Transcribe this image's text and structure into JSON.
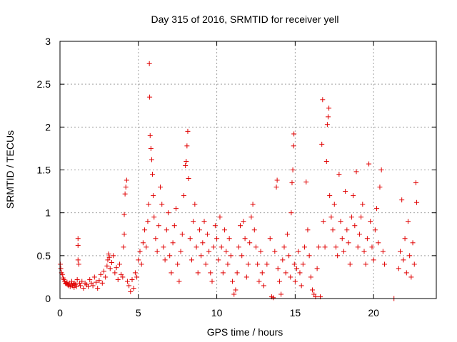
{
  "chart_data": {
    "type": "scatter",
    "title": "Day 315 of 2016, SRMTID for receiver yell",
    "xlabel": "GPS time / hours",
    "ylabel": "SRMTID / TECUs",
    "xlim": [
      0,
      24
    ],
    "ylim": [
      0,
      3
    ],
    "x_ticks": [
      0,
      5,
      10,
      15,
      20
    ],
    "x_tick_labels": [
      "0",
      "5",
      "10",
      "15",
      "20"
    ],
    "y_ticks": [
      0,
      0.5,
      1,
      1.5,
      2,
      2.5,
      3
    ],
    "y_tick_labels": [
      "0",
      "0.5",
      "1",
      "1.5",
      "2",
      "2.5",
      "3"
    ],
    "grid": true,
    "marker": "plus",
    "color": "#e00000",
    "series": [
      {
        "name": "SRMTID",
        "points": [
          [
            0.02,
            0.4
          ],
          [
            0.05,
            0.35
          ],
          [
            0.1,
            0.3
          ],
          [
            0.15,
            0.28
          ],
          [
            0.2,
            0.24
          ],
          [
            0.25,
            0.22
          ],
          [
            0.3,
            0.2
          ],
          [
            0.35,
            0.18
          ],
          [
            0.4,
            0.17
          ],
          [
            0.45,
            0.19
          ],
          [
            0.5,
            0.16
          ],
          [
            0.55,
            0.15
          ],
          [
            0.6,
            0.18
          ],
          [
            0.65,
            0.14
          ],
          [
            0.7,
            0.16
          ],
          [
            0.75,
            0.2
          ],
          [
            0.8,
            0.15
          ],
          [
            0.85,
            0.17
          ],
          [
            0.9,
            0.13
          ],
          [
            0.95,
            0.18
          ],
          [
            1.0,
            0.16
          ],
          [
            1.05,
            0.14
          ],
          [
            1.1,
            0.22
          ],
          [
            1.15,
            0.45
          ],
          [
            1.15,
            0.62
          ],
          [
            1.15,
            0.7
          ],
          [
            1.2,
            0.4
          ],
          [
            1.25,
            0.18
          ],
          [
            1.3,
            0.15
          ],
          [
            1.4,
            0.2
          ],
          [
            1.5,
            0.12
          ],
          [
            1.6,
            0.18
          ],
          [
            1.7,
            0.16
          ],
          [
            1.8,
            0.14
          ],
          [
            1.9,
            0.22
          ],
          [
            2.0,
            0.18
          ],
          [
            2.1,
            0.15
          ],
          [
            2.2,
            0.25
          ],
          [
            2.3,
            0.19
          ],
          [
            2.4,
            0.12
          ],
          [
            2.5,
            0.21
          ],
          [
            2.6,
            0.28
          ],
          [
            2.7,
            0.18
          ],
          [
            2.8,
            0.32
          ],
          [
            2.9,
            0.25
          ],
          [
            3.0,
            0.38
          ],
          [
            3.05,
            0.45
          ],
          [
            3.1,
            0.52
          ],
          [
            3.15,
            0.48
          ],
          [
            3.2,
            0.35
          ],
          [
            3.3,
            0.42
          ],
          [
            3.4,
            0.5
          ],
          [
            3.5,
            0.3
          ],
          [
            3.6,
            0.36
          ],
          [
            3.7,
            0.22
          ],
          [
            3.8,
            0.4
          ],
          [
            3.9,
            0.28
          ],
          [
            4.0,
            0.25
          ],
          [
            4.05,
            0.6
          ],
          [
            4.1,
            0.75
          ],
          [
            4.1,
            0.98
          ],
          [
            4.15,
            1.22
          ],
          [
            4.2,
            1.3
          ],
          [
            4.25,
            1.38
          ],
          [
            4.3,
            0.2
          ],
          [
            4.4,
            0.15
          ],
          [
            4.5,
            0.08
          ],
          [
            4.6,
            0.22
          ],
          [
            4.7,
            0.12
          ],
          [
            4.8,
            0.3
          ],
          [
            4.9,
            0.25
          ],
          [
            5.0,
            0.45
          ],
          [
            5.1,
            0.55
          ],
          [
            5.2,
            0.4
          ],
          [
            5.3,
            0.65
          ],
          [
            5.4,
            0.8
          ],
          [
            5.5,
            0.6
          ],
          [
            5.6,
            0.9
          ],
          [
            5.65,
            1.1
          ],
          [
            5.7,
            2.74
          ],
          [
            5.72,
            2.35
          ],
          [
            5.75,
            1.9
          ],
          [
            5.8,
            1.75
          ],
          [
            5.85,
            1.62
          ],
          [
            5.9,
            1.45
          ],
          [
            5.95,
            1.2
          ],
          [
            6.0,
            0.95
          ],
          [
            6.1,
            0.7
          ],
          [
            6.2,
            0.55
          ],
          [
            6.3,
            0.85
          ],
          [
            6.4,
            1.3
          ],
          [
            6.5,
            1.1
          ],
          [
            6.6,
            0.6
          ],
          [
            6.7,
            0.45
          ],
          [
            6.8,
            0.8
          ],
          [
            6.9,
            1.0
          ],
          [
            7.0,
            0.5
          ],
          [
            7.1,
            0.3
          ],
          [
            7.2,
            0.65
          ],
          [
            7.3,
            0.85
          ],
          [
            7.4,
            1.05
          ],
          [
            7.5,
            0.4
          ],
          [
            7.6,
            0.2
          ],
          [
            7.7,
            0.55
          ],
          [
            7.8,
            0.75
          ],
          [
            7.9,
            1.2
          ],
          [
            8.0,
            1.55
          ],
          [
            8.05,
            1.6
          ],
          [
            8.1,
            1.78
          ],
          [
            8.15,
            1.95
          ],
          [
            8.2,
            1.4
          ],
          [
            8.3,
            0.7
          ],
          [
            8.4,
            0.45
          ],
          [
            8.5,
            0.9
          ],
          [
            8.6,
            1.1
          ],
          [
            8.7,
            0.6
          ],
          [
            8.8,
            0.3
          ],
          [
            8.9,
            0.8
          ],
          [
            9.0,
            0.5
          ],
          [
            9.1,
            0.65
          ],
          [
            9.2,
            0.9
          ],
          [
            9.3,
            0.4
          ],
          [
            9.4,
            0.75
          ],
          [
            9.5,
            0.55
          ],
          [
            9.6,
            0.3
          ],
          [
            9.7,
            0.2
          ],
          [
            9.8,
            0.6
          ],
          [
            9.9,
            0.85
          ],
          [
            10.0,
            0.7
          ],
          [
            10.1,
            0.45
          ],
          [
            10.2,
            0.95
          ],
          [
            10.3,
            0.6
          ],
          [
            10.4,
            0.3
          ],
          [
            10.5,
            0.8
          ],
          [
            10.6,
            0.55
          ],
          [
            10.7,
            0.4
          ],
          [
            10.8,
            0.7
          ],
          [
            10.9,
            0.5
          ],
          [
            11.0,
            0.2
          ],
          [
            11.1,
            0.05
          ],
          [
            11.2,
            0.1
          ],
          [
            11.3,
            0.3
          ],
          [
            11.4,
            0.6
          ],
          [
            11.5,
            0.85
          ],
          [
            11.6,
            0.5
          ],
          [
            11.7,
            0.9
          ],
          [
            11.8,
            0.7
          ],
          [
            11.9,
            0.25
          ],
          [
            12.0,
            0.4
          ],
          [
            12.1,
            0.65
          ],
          [
            12.2,
            0.95
          ],
          [
            12.3,
            1.1
          ],
          [
            12.4,
            0.8
          ],
          [
            12.5,
            0.6
          ],
          [
            12.6,
            0.4
          ],
          [
            12.7,
            0.2
          ],
          [
            12.8,
            0.55
          ],
          [
            12.9,
            0.3
          ],
          [
            13.0,
            0.15
          ],
          [
            13.2,
            0.4
          ],
          [
            13.4,
            0.7
          ],
          [
            13.5,
            0.02
          ],
          [
            13.6,
            0.01
          ],
          [
            13.7,
            0.55
          ],
          [
            13.8,
            1.3
          ],
          [
            13.85,
            1.38
          ],
          [
            13.9,
            0.35
          ],
          [
            14.0,
            0.2
          ],
          [
            14.1,
            0.05
          ],
          [
            14.2,
            0.45
          ],
          [
            14.3,
            0.6
          ],
          [
            14.4,
            0.3
          ],
          [
            14.5,
            0.75
          ],
          [
            14.6,
            0.5
          ],
          [
            14.7,
            0.25
          ],
          [
            14.75,
            1.0
          ],
          [
            14.8,
            1.35
          ],
          [
            14.85,
            1.5
          ],
          [
            14.9,
            1.78
          ],
          [
            14.92,
            1.92
          ],
          [
            14.95,
            0.4
          ],
          [
            15.0,
            0.2
          ],
          [
            15.1,
            0.35
          ],
          [
            15.2,
            0.55
          ],
          [
            15.3,
            0.3
          ],
          [
            15.4,
            0.15
          ],
          [
            15.5,
            0.4
          ],
          [
            15.6,
            0.6
          ],
          [
            15.7,
            1.36
          ],
          [
            15.8,
            0.8
          ],
          [
            15.9,
            0.5
          ],
          [
            16.0,
            0.25
          ],
          [
            16.1,
            0.1
          ],
          [
            16.2,
            0.05
          ],
          [
            16.3,
            0.02
          ],
          [
            16.4,
            0.35
          ],
          [
            16.5,
            0.6
          ],
          [
            16.6,
            0.02
          ],
          [
            16.7,
            1.8
          ],
          [
            16.75,
            2.32
          ],
          [
            16.8,
            0.9
          ],
          [
            16.9,
            0.6
          ],
          [
            17.0,
            1.6
          ],
          [
            17.05,
            2.03
          ],
          [
            17.1,
            2.12
          ],
          [
            17.15,
            2.22
          ],
          [
            17.2,
            1.2
          ],
          [
            17.3,
            0.95
          ],
          [
            17.4,
            0.8
          ],
          [
            17.5,
            1.1
          ],
          [
            17.6,
            0.6
          ],
          [
            17.7,
            0.5
          ],
          [
            17.8,
            1.45
          ],
          [
            17.9,
            0.9
          ],
          [
            18.0,
            0.7
          ],
          [
            18.1,
            0.55
          ],
          [
            18.2,
            1.25
          ],
          [
            18.3,
            0.8
          ],
          [
            18.4,
            0.65
          ],
          [
            18.5,
            0.4
          ],
          [
            18.6,
            0.95
          ],
          [
            18.7,
            1.2
          ],
          [
            18.8,
            0.85
          ],
          [
            18.9,
            1.48
          ],
          [
            19.0,
            0.6
          ],
          [
            19.1,
            0.75
          ],
          [
            19.2,
            0.95
          ],
          [
            19.3,
            1.1
          ],
          [
            19.4,
            0.55
          ],
          [
            19.5,
            0.4
          ],
          [
            19.6,
            0.7
          ],
          [
            19.7,
            1.57
          ],
          [
            19.8,
            0.9
          ],
          [
            19.9,
            0.6
          ],
          [
            20.0,
            0.45
          ],
          [
            20.1,
            0.8
          ],
          [
            20.2,
            1.05
          ],
          [
            20.3,
            0.65
          ],
          [
            20.4,
            1.3
          ],
          [
            20.5,
            1.5
          ],
          [
            20.6,
            0.55
          ],
          [
            20.7,
            0.4
          ],
          [
            21.3,
            0.0
          ],
          [
            21.6,
            0.35
          ],
          [
            21.7,
            0.55
          ],
          [
            21.8,
            1.15
          ],
          [
            21.9,
            0.45
          ],
          [
            22.0,
            0.7
          ],
          [
            22.1,
            0.3
          ],
          [
            22.2,
            0.9
          ],
          [
            22.3,
            0.5
          ],
          [
            22.4,
            0.25
          ],
          [
            22.5,
            0.65
          ],
          [
            22.6,
            0.4
          ],
          [
            22.7,
            1.35
          ],
          [
            22.75,
            1.12
          ]
        ]
      }
    ]
  }
}
